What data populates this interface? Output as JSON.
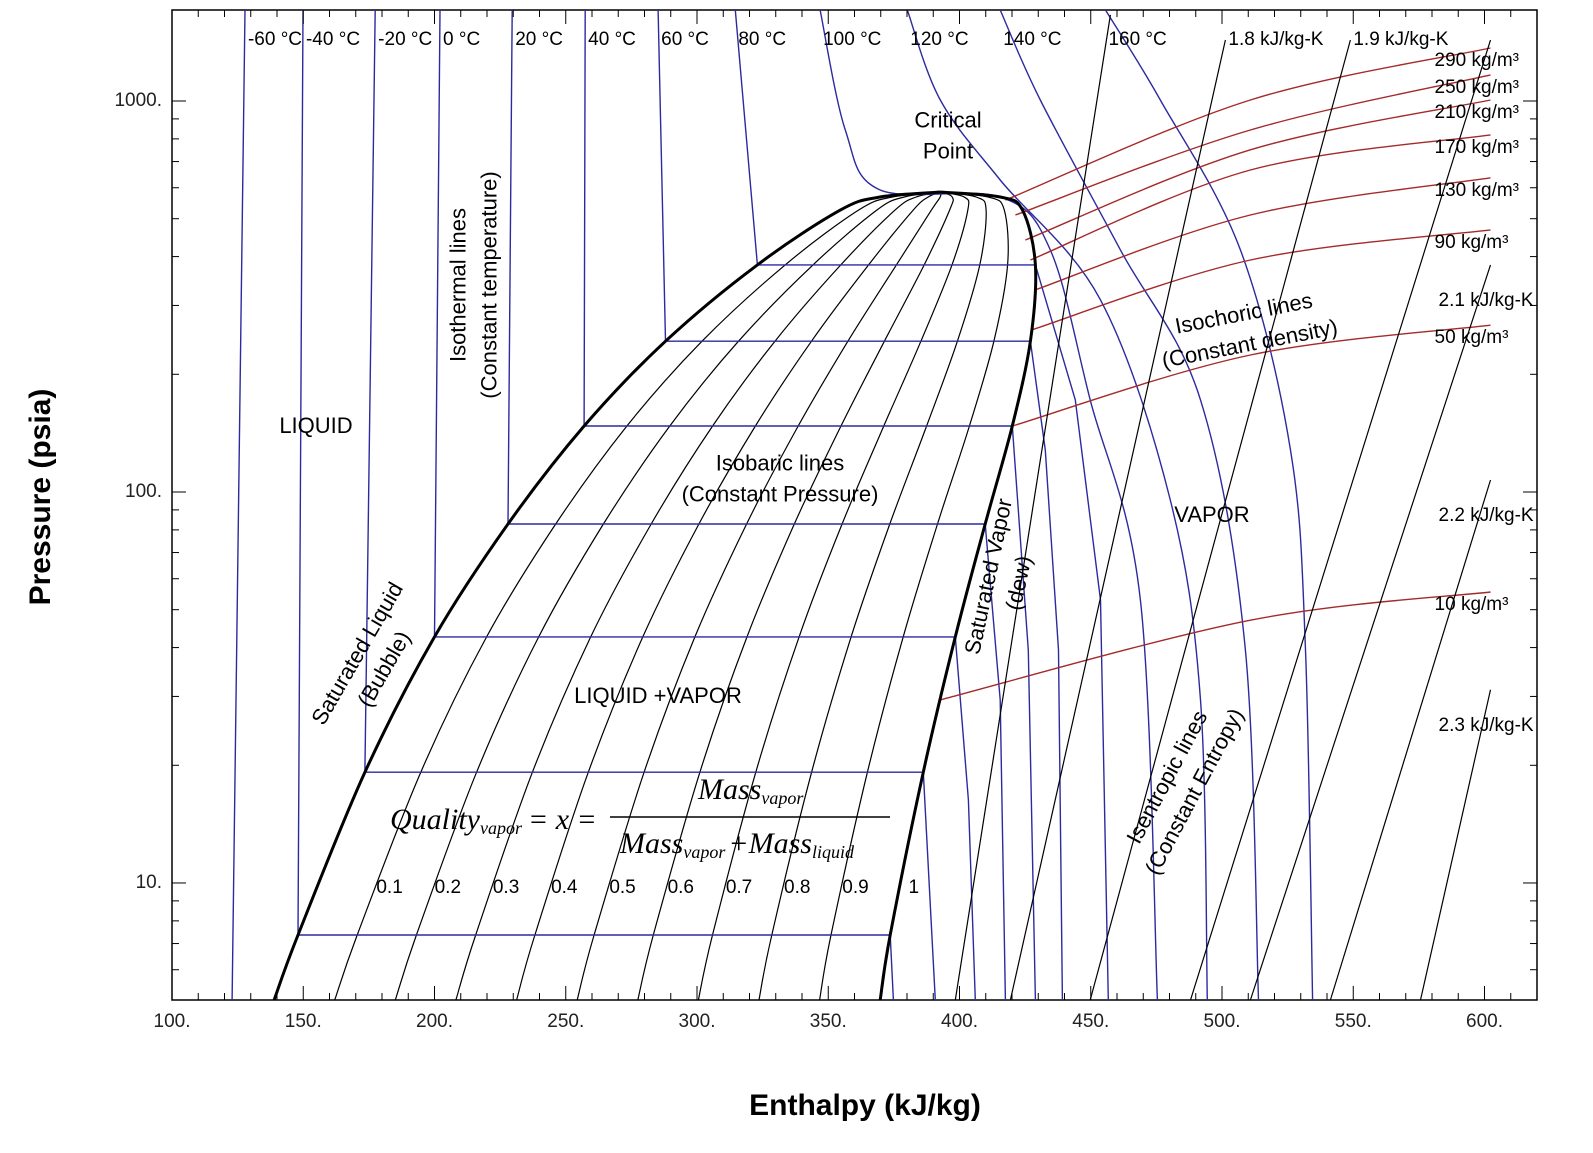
{
  "chart_data": {
    "type": "line",
    "log_y": true,
    "xlabel": "Enthalpy (kJ/kg)",
    "ylabel": "Pressure (psia)",
    "xlim": [
      100,
      620
    ],
    "ylim": [
      5.02,
      1709
    ],
    "xticks": [
      {
        "value": 100,
        "label": "100."
      },
      {
        "value": 150,
        "label": "150."
      },
      {
        "value": 200,
        "label": "200."
      },
      {
        "value": 250,
        "label": "250."
      },
      {
        "value": 300,
        "label": "300."
      },
      {
        "value": 350,
        "label": "350."
      },
      {
        "value": 400,
        "label": "400."
      },
      {
        "value": 450,
        "label": "450."
      },
      {
        "value": 500,
        "label": "500."
      },
      {
        "value": 550,
        "label": "550."
      },
      {
        "value": 600,
        "label": "600."
      }
    ],
    "yticks": [
      {
        "value": 10,
        "label": "10."
      },
      {
        "value": 100,
        "label": "100."
      },
      {
        "value": 1000,
        "label": "1000."
      }
    ],
    "xminorticks": [
      110,
      120,
      130,
      140,
      160,
      170,
      180,
      190,
      210,
      220,
      230,
      240,
      260,
      270,
      280,
      290,
      310,
      320,
      330,
      340,
      360,
      370,
      380,
      390,
      410,
      420,
      430,
      440,
      460,
      470,
      480,
      490,
      510,
      520,
      530,
      540,
      560,
      570,
      580,
      590,
      610
    ],
    "yminorticks": [
      6,
      7,
      8,
      9,
      20,
      30,
      40,
      50,
      60,
      70,
      80,
      90,
      200,
      300,
      400,
      500,
      600,
      700,
      800,
      900
    ],
    "saturation": {
      "color": "#000000",
      "pressure": [
        5.02,
        7.36,
        19.2,
        42.6,
        82.8,
        147.5,
        243,
        381,
        526,
        568,
        585
      ],
      "liquid_h": [
        138.9,
        148,
        173.5,
        200,
        228,
        257,
        288,
        323,
        354.6,
        369.8,
        392.7
      ],
      "vapor_h": [
        369.8,
        373.6,
        386.2,
        398.4,
        409.8,
        420.1,
        427,
        428.9,
        424,
        415.5,
        392.7
      ]
    },
    "quality": {
      "color": "#000000",
      "values": [
        0.1,
        0.2,
        0.3,
        0.4,
        0.5,
        0.6,
        0.7,
        0.8,
        0.9,
        1
      ]
    },
    "isotherms": [
      {
        "name": "-60 °C",
        "color": "#2b2b9e",
        "x": [
          127.8,
          122.9
        ],
        "values": [
          1709,
          5.02
        ]
      },
      {
        "name": "-40 °C",
        "color": "#2b2b9e",
        "x": [
          149.9,
          148,
          373.6,
          374.8
        ],
        "values": [
          1709,
          7.36,
          7.36,
          5.02
        ]
      },
      {
        "name": "-20 °C",
        "color": "#2b2b9e",
        "x": [
          177.4,
          173.5,
          386.2,
          390.8
        ],
        "values": [
          1709,
          19.2,
          19.2,
          5.02
        ]
      },
      {
        "name": "0 °C",
        "color": "#2b2b9e",
        "x": [
          202.1,
          200,
          398.4,
          403.4,
          406
        ],
        "values": [
          1709,
          42.6,
          42.6,
          16.3,
          5.02
        ]
      },
      {
        "name": "20 °C",
        "color": "#2b2b9e",
        "x": [
          229.6,
          228,
          409.8,
          415.5,
          417.5
        ],
        "values": [
          1709,
          82.8,
          82.8,
          29.4,
          5.02
        ]
      },
      {
        "name": "40 °C",
        "color": "#2b2b9e",
        "x": [
          257.4,
          257,
          420.1,
          426.2,
          428.9
        ],
        "values": [
          1709,
          147.5,
          147.5,
          39.4,
          5.02
        ]
      },
      {
        "name": "60 °C",
        "color": "#2b2b9e",
        "x": [
          285.2,
          288,
          427,
          432.7,
          437.7,
          439.2
        ],
        "values": [
          1709,
          243,
          243,
          128,
          39.4,
          5.02
        ]
      },
      {
        "name": "80 °C",
        "color": "#2b2b9e",
        "x": [
          314.6,
          323,
          428.9,
          444.1,
          453.7,
          456.7
        ],
        "values": [
          1709,
          381,
          381,
          172,
          52.9,
          5.02
        ]
      },
      {
        "name": "100 °C",
        "color": "#2b2b9e",
        "x": [
          346.9,
          356.5,
          369.8,
          415.5,
          434.6,
          449.8,
          468.9,
          475.4
        ],
        "values": [
          1709,
          843,
          592,
          568,
          416,
          172,
          52.9,
          5.02
        ]
      },
      {
        "name": "120 °C",
        "color": "#2b2b9e",
        "x": [
          380.1,
          392.7,
          415.5,
          453.7,
          480.3,
          491.8,
          494.4
        ],
        "values": [
          1709,
          1006,
          628,
          310,
          95.4,
          29.4,
          5.02
        ]
      },
      {
        "name": "140 °C",
        "color": "#2b2b9e",
        "x": [
          415.5,
          430.8,
          461.3,
          491.8,
          508.9,
          513.9
        ],
        "values": [
          1709,
          1006,
          416,
          172,
          39.4,
          5.02
        ]
      },
      {
        "name": "160 °C",
        "color": "#2b2b9e",
        "x": [
          455.6,
          476.5,
          507,
          526.1,
          531.8,
          534.5
        ],
        "values": [
          1709,
          1006,
          416,
          128,
          39.4,
          5.02
        ]
      }
    ],
    "isochores": [
      {
        "name": "290 kg/m³",
        "color": "#a52a2a",
        "x": [
          417.5,
          510.8,
          602.3
        ],
        "values": [
          558,
          1006,
          1366
        ]
      },
      {
        "name": "250 kg/m³",
        "color": "#a52a2a",
        "x": [
          421.3,
          510.8,
          602.3
        ],
        "values": [
          511,
          843,
          1166
        ]
      },
      {
        "name": "210 kg/m³",
        "color": "#a52a2a",
        "x": [
          425.1,
          510.8,
          602.3
        ],
        "values": [
          441,
          750,
          1006
        ]
      },
      {
        "name": "170 kg/m³",
        "color": "#a52a2a",
        "x": [
          427,
          510.8,
          602.3
        ],
        "values": [
          392,
          666,
          819
        ]
      },
      {
        "name": "130 kg/m³",
        "color": "#a52a2a",
        "x": [
          428.9,
          510.8,
          602.3
        ],
        "values": [
          329,
          511,
          636
        ]
      },
      {
        "name": "90 kg/m³",
        "color": "#a52a2a",
        "x": [
          427.7,
          510.8,
          602.3
        ],
        "values": [
          260,
          392,
          468
        ]
      },
      {
        "name": "50 kg/m³",
        "color": "#a52a2a",
        "x": [
          420.1,
          510.8,
          602.3
        ],
        "values": [
          147.5,
          224,
          267
        ]
      },
      {
        "name": "10 kg/m³",
        "color": "#a52a2a",
        "x": [
          392.7,
          510.8,
          602.3
        ],
        "values": [
          29.4,
          47,
          55.5
        ]
      }
    ],
    "isentropes": [
      {
        "color": "#000000",
        "x": [
          457.5,
          398.4
        ],
        "values": [
          1660,
          5.02
        ]
      },
      {
        "name": "1.8 kJ/kg-K",
        "color": "#000000",
        "x": [
          501.3,
          419.4
        ],
        "values": [
          1432,
          5.02
        ]
      },
      {
        "name": "1.9 kJ/kg-K",
        "color": "#000000",
        "x": [
          548.9,
          449.8
        ],
        "values": [
          1432,
          5.02
        ]
      },
      {
        "color": "#000000",
        "x": [
          602.3,
          488
        ],
        "values": [
          1432,
          5.02
        ]
      },
      {
        "name": "2.1 kJ/kg-K",
        "color": "#000000",
        "x": [
          602.3,
          510.8
        ],
        "values": [
          381,
          5.02
        ]
      },
      {
        "name": "2.2 kJ/kg-K",
        "color": "#000000",
        "x": [
          602.3,
          541.3
        ],
        "values": [
          107.3,
          5.02
        ]
      },
      {
        "name": "2.3 kJ/kg-K",
        "color": "#000000",
        "x": [
          602.3,
          575.6
        ],
        "values": [
          31.2,
          5.02
        ]
      }
    ],
    "annotations": [
      {
        "lines": [
          "LIQUID"
        ]
      },
      {
        "lines": [
          "Isothermal lines",
          "(Constant temperature)"
        ]
      },
      {
        "lines": [
          "Critical",
          "Point"
        ]
      },
      {
        "lines": [
          "Isobaric lines",
          "(Constant Pressure)"
        ]
      },
      {
        "lines": [
          "VAPOR"
        ]
      },
      {
        "lines": [
          "Isochoric lines",
          "(Constant density)"
        ]
      },
      {
        "lines": [
          "Saturated Liquid",
          "(Bubble)"
        ]
      },
      {
        "lines": [
          "Saturated Vapor",
          "(dew)"
        ]
      },
      {
        "lines": [
          "LIQUID +VAPOR"
        ]
      },
      {
        "lines": [
          "Isentropic lines",
          "(Constant Entropy)"
        ]
      }
    ],
    "formula": {
      "lhs": "Quality",
      "lhs_sub": "vapor",
      "eq": "= x =",
      "num": "Mass",
      "num_sub": "vapor",
      "den": "Mass",
      "den_sub": "vapor",
      "plus": "+Mass",
      "plus_sub": "liquid"
    }
  }
}
